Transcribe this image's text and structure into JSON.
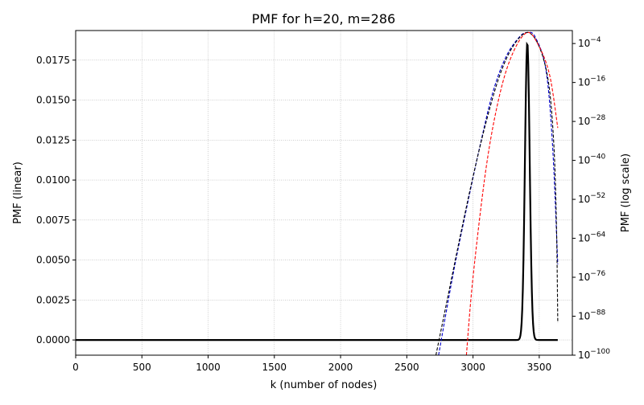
{
  "chart_data": {
    "type": "line",
    "title": "PMF for h=20, m=286",
    "xlabel": "k (number of nodes)",
    "ylabel_left": "PMF (linear)",
    "ylabel_right": "PMF (log scale)",
    "xlim": [
      0,
      3750
    ],
    "ylim_left": [
      -0.00095,
      0.01935
    ],
    "ylim_right_exp10": [
      -100,
      0
    ],
    "x_ticks": [
      0,
      500,
      1000,
      1500,
      2000,
      2500,
      3000,
      3500
    ],
    "x_tick_labels": [
      "0",
      "500",
      "1000",
      "1500",
      "2000",
      "2500",
      "3000",
      "3500"
    ],
    "y_left_ticks": [
      0,
      0.0025,
      0.005,
      0.0075,
      0.01,
      0.0125,
      0.015,
      0.0175
    ],
    "y_left_tick_labels": [
      "0.0000",
      "0.0025",
      "0.0050",
      "0.0075",
      "0.0100",
      "0.0125",
      "0.0150",
      "0.0175"
    ],
    "y_right_ticks_exp": [
      -100,
      -88,
      -76,
      -64,
      -52,
      -40,
      -28,
      -16,
      -4
    ],
    "y_right_tick_base": "10",
    "y_right_tick_exponents": [
      "−100",
      "−88",
      "−76",
      "−64",
      "−52",
      "−40",
      "−28",
      "−16",
      "−4"
    ],
    "grid": true,
    "series": [
      {
        "axis": "left",
        "color": "#000000",
        "style": "solid",
        "peak_k": 3410,
        "peak_value": 0.0186,
        "sigma": 18,
        "x_range": [
          0,
          3640
        ]
      },
      {
        "axis": "right",
        "color": "#0000cc",
        "style": "dashed",
        "points": [
          [
            2740,
            -100
          ],
          [
            2850,
            -75
          ],
          [
            2950,
            -55
          ],
          [
            3050,
            -36
          ],
          [
            3150,
            -19
          ],
          [
            3250,
            -8
          ],
          [
            3350,
            -2
          ],
          [
            3410,
            -0.6
          ],
          [
            3470,
            -2
          ],
          [
            3550,
            -12
          ],
          [
            3600,
            -35
          ],
          [
            3640,
            -72
          ]
        ]
      },
      {
        "axis": "right",
        "color": "#000000",
        "style": "dashed",
        "points": [
          [
            2720,
            -100
          ],
          [
            2800,
            -84
          ],
          [
            2900,
            -64
          ],
          [
            3000,
            -45
          ],
          [
            3100,
            -28
          ],
          [
            3200,
            -14
          ],
          [
            3300,
            -5
          ],
          [
            3410,
            -0.6
          ],
          [
            3500,
            -5
          ],
          [
            3570,
            -16
          ],
          [
            3610,
            -35
          ],
          [
            3630,
            -60
          ],
          [
            3640,
            -90
          ]
        ]
      },
      {
        "axis": "right",
        "color": "#ff0000",
        "style": "dashed",
        "points": [
          [
            2950,
            -100
          ],
          [
            3000,
            -76
          ],
          [
            3100,
            -42
          ],
          [
            3200,
            -20
          ],
          [
            3300,
            -7
          ],
          [
            3410,
            -0.6
          ],
          [
            3500,
            -5
          ],
          [
            3580,
            -14
          ],
          [
            3640,
            -30
          ]
        ]
      }
    ]
  }
}
